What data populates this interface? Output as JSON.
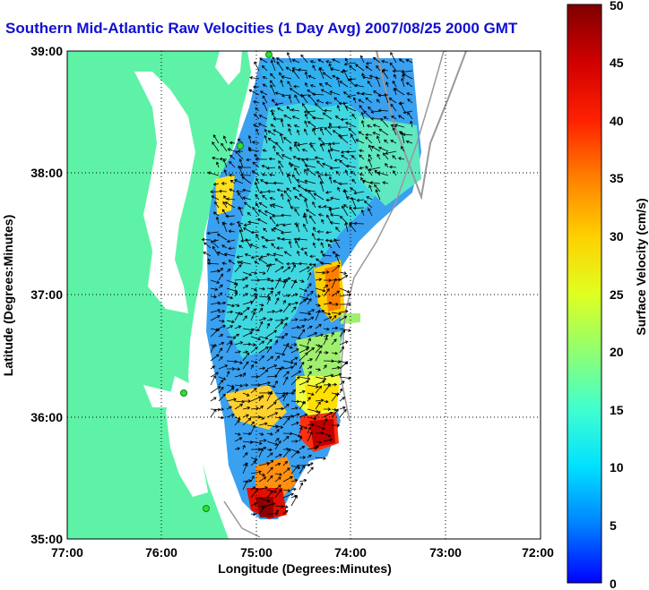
{
  "title": "Southern Mid-Atlantic Raw Velocities (1 Day Avg) 2007/08/25 2000 GMT",
  "x_axis": {
    "label": "Longitude (Degrees:Minutes)",
    "ticks": [
      "77:00",
      "76:00",
      "75:00",
      "74:00",
      "73:00",
      "72:00"
    ],
    "range": [
      -77,
      -72
    ]
  },
  "y_axis": {
    "label": "Latitude (Degrees:Minutes)",
    "ticks": [
      "39:00",
      "38:00",
      "37:00",
      "36:00",
      "35:00"
    ],
    "range": [
      35,
      39
    ]
  },
  "colorbar": {
    "label": "Surface Velocity (cm/s)",
    "ticks": [
      "50",
      "45",
      "40",
      "35",
      "30",
      "25",
      "20",
      "15",
      "10",
      "5",
      "0"
    ],
    "range": [
      0,
      50
    ],
    "colors": [
      "#0000ff",
      "#00a0ff",
      "#00ffff",
      "#60ffa0",
      "#c0ff40",
      "#ffff00",
      "#ffc000",
      "#ff7000",
      "#ff2000",
      "#d00000",
      "#800000"
    ]
  },
  "colors": {
    "land": "#5ef2a6",
    "water_bg": "#ffffff",
    "grid": "#000000",
    "title": "#1010d0",
    "station": "#33dd33"
  },
  "grid": true
}
